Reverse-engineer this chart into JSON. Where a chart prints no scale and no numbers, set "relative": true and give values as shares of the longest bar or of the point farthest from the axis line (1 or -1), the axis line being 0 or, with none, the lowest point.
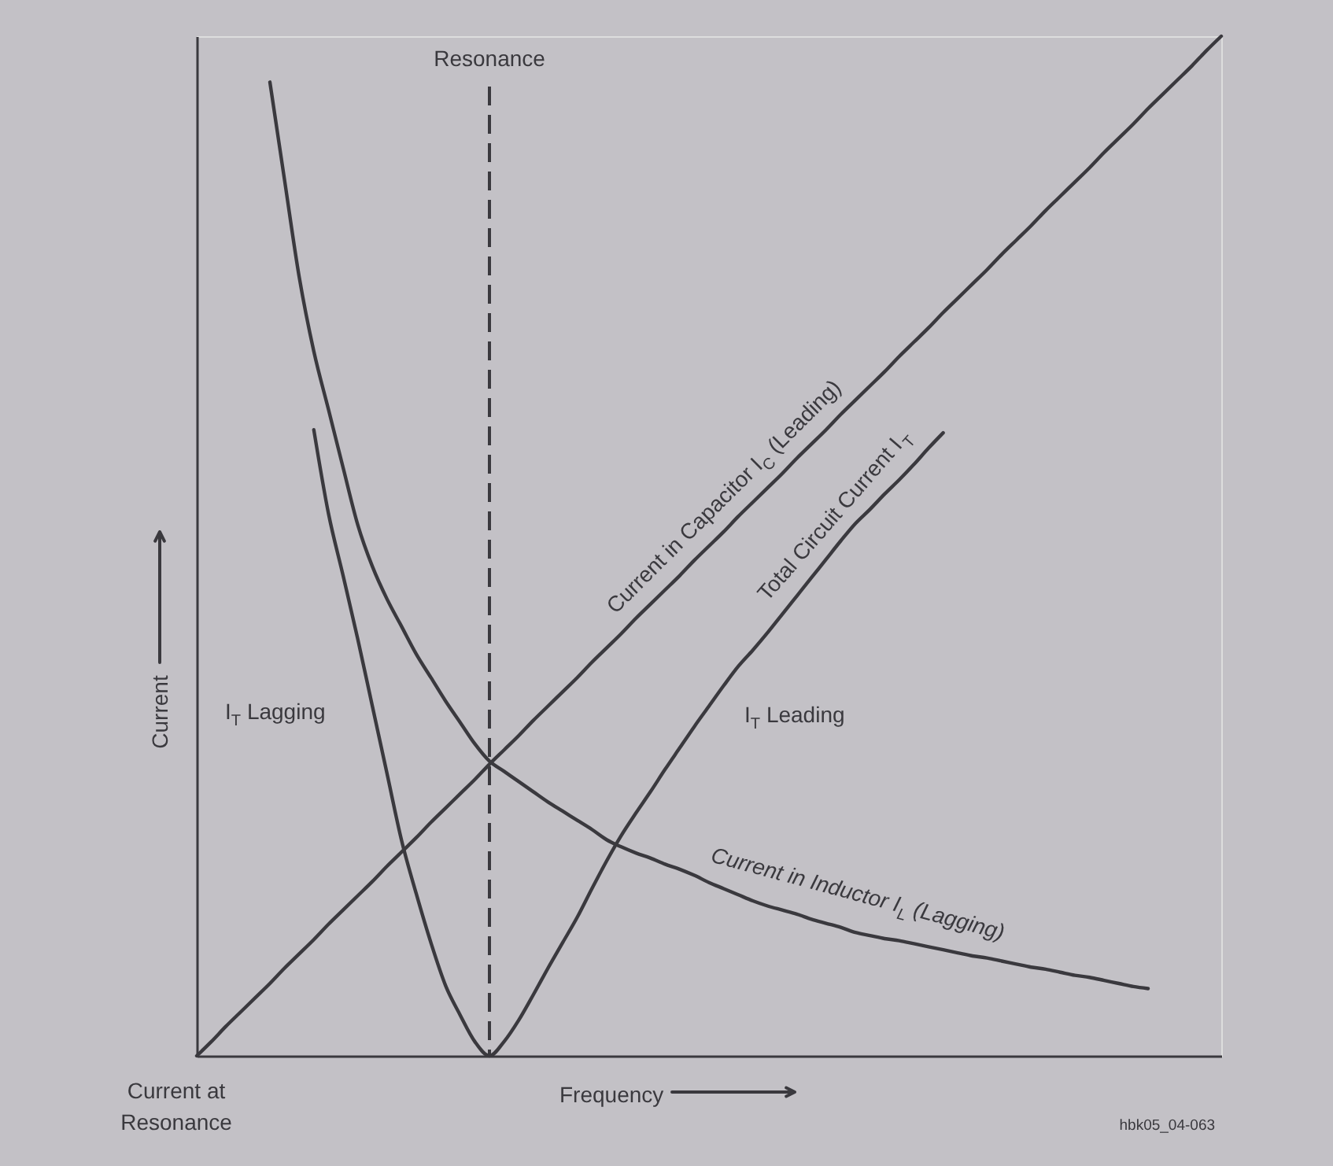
{
  "chart_data": {
    "type": "line",
    "relative": true,
    "xlabel": "Frequency",
    "ylabel": "Current",
    "categories": [
      null,
      null,
      null,
      null,
      null,
      null,
      null,
      null,
      null,
      null,
      null,
      null,
      null,
      null,
      null,
      null,
      null,
      null,
      null,
      null,
      null,
      null,
      null,
      null,
      null,
      null,
      null,
      null,
      null,
      null,
      null,
      null,
      null,
      null,
      null,
      null,
      null,
      null,
      null,
      null,
      null,
      null,
      null,
      null,
      null,
      null,
      null,
      null,
      null,
      null,
      null,
      null,
      null,
      null,
      null,
      null,
      null,
      null,
      null,
      null,
      null,
      null,
      null,
      null,
      null,
      null,
      null,
      null,
      null,
      null,
      null
    ],
    "series": [
      {
        "name": "Current in Capacitor I$_{C}$ (Leading)",
        "color": "#3a393e",
        "values": [
          0,
          0.014,
          0.029,
          0.043,
          0.057,
          0.071,
          0.086,
          0.1,
          0.114,
          0.129,
          0.143,
          0.157,
          0.171,
          0.186,
          0.2,
          0.214,
          0.229,
          0.243,
          0.257,
          0.271,
          0.286,
          0.3,
          0.314,
          0.329,
          0.343,
          0.357,
          0.371,
          0.386,
          0.4,
          0.414,
          0.429,
          0.443,
          0.457,
          0.471,
          0.486,
          0.5,
          0.514,
          0.529,
          0.543,
          0.557,
          0.571,
          0.586,
          0.6,
          0.614,
          0.629,
          0.643,
          0.657,
          0.671,
          0.686,
          0.7,
          0.714,
          0.729,
          0.743,
          0.757,
          0.771,
          0.786,
          0.8,
          0.814,
          0.829,
          0.843,
          0.857,
          0.871,
          0.886,
          0.9,
          0.914,
          0.929,
          0.943,
          0.957,
          0.971,
          0.986,
          1
        ]
      },
      {
        "name": "Total Circuit Current I$_{T}$",
        "color": "#3a393e",
        "values": [
          null,
          null,
          null,
          null,
          null,
          null,
          null,
          null,
          0.614,
          0.532,
          0.471,
          0.409,
          0.343,
          0.277,
          0.211,
          0.159,
          0.111,
          0.069,
          0.04,
          0.014,
          0,
          0.014,
          0.035,
          0.06,
          0.086,
          0.111,
          0.136,
          0.164,
          0.191,
          0.216,
          0.238,
          0.259,
          0.281,
          0.302,
          0.323,
          0.343,
          0.363,
          0.382,
          0.398,
          0.415,
          0.433,
          0.451,
          0.469,
          0.487,
          0.505,
          0.522,
          0.536,
          0.551,
          0.565,
          0.58,
          0.596,
          0.611,
          null,
          null,
          null,
          null,
          null,
          null,
          null,
          null,
          null,
          null,
          null,
          null,
          null,
          null,
          null,
          null,
          null,
          null,
          null
        ]
      },
      {
        "name": "Current in Inductor I$_{L}$ (Lagging)",
        "color": "#3a393e",
        "values": [
          null,
          null,
          null,
          null,
          null,
          0.955,
          0.859,
          0.764,
          0.691,
          0.634,
          0.577,
          0.521,
          0.48,
          0.448,
          0.421,
          0.394,
          0.371,
          0.348,
          0.327,
          0.306,
          0.289,
          0.279,
          0.269,
          0.259,
          0.249,
          0.24,
          0.231,
          0.222,
          0.212,
          0.205,
          0.199,
          0.194,
          0.188,
          0.183,
          0.177,
          0.17,
          0.164,
          0.158,
          0.152,
          0.147,
          0.143,
          0.139,
          0.134,
          0.13,
          0.126,
          0.121,
          0.118,
          0.115,
          0.113,
          0.11,
          0.107,
          0.104,
          0.101,
          0.098,
          0.096,
          0.093,
          0.09,
          0.087,
          0.085,
          0.082,
          0.079,
          0.077,
          0.074,
          0.071,
          0.068,
          0.066,
          null,
          null,
          null,
          null,
          null
        ]
      }
    ],
    "annotations": [
      "Resonance",
      "I$_{T}$ Lagging",
      "I$_{T}$ Leading",
      "Current at\nResonance",
      "hbk05_04-063"
    ]
  }
}
